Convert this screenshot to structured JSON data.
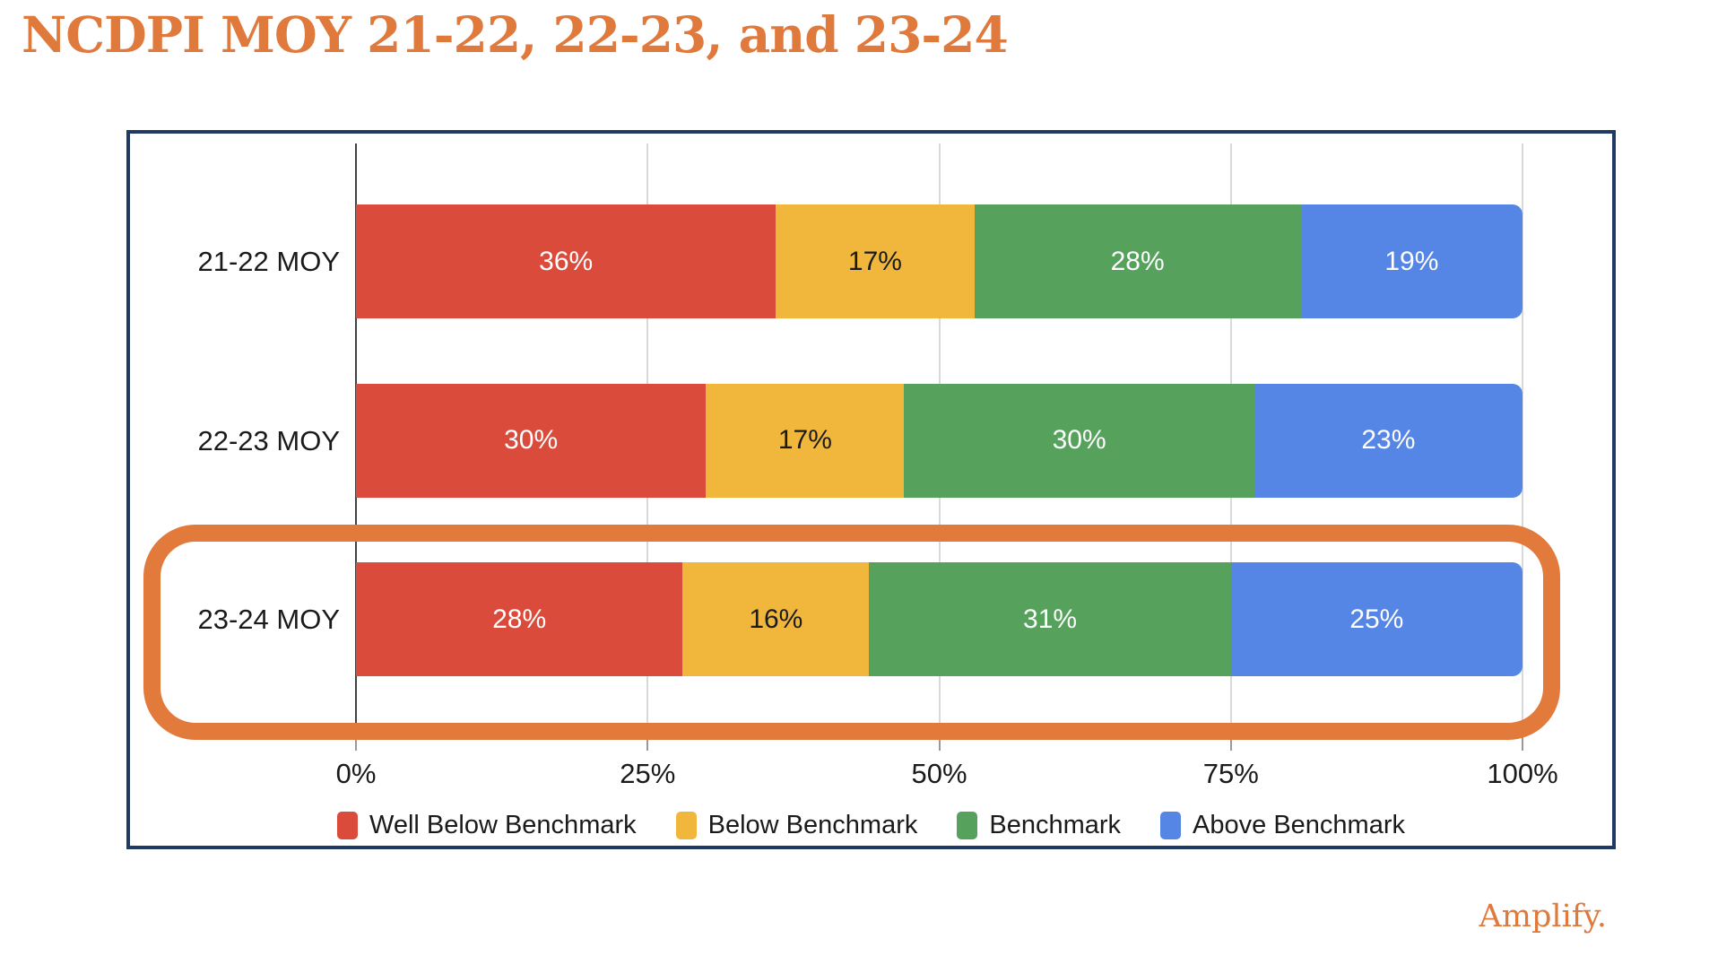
{
  "title": "NCDPI MOY 21-22, 22-23, and 23-24",
  "footer": {
    "logo_text": "Amplify."
  },
  "colors": {
    "title_orange": "#E0793C",
    "highlight_orange": "#E27A3B",
    "chart_border_navy": "#1F3A63",
    "gridline_gray": "#d9d9d9",
    "axis_line_dark": "#424242"
  },
  "chart_data": {
    "type": "bar",
    "stacked": true,
    "orientation": "horizontal",
    "title": "",
    "categories": [
      "21-22 MOY",
      "22-23 MOY",
      "23-24 MOY"
    ],
    "series": [
      {
        "name": "Well Below Benchmark",
        "color": "#DB4B3C",
        "label_color": "#FFFFFF",
        "values": [
          36,
          30,
          28
        ]
      },
      {
        "name": "Below Benchmark",
        "color": "#F0B73C",
        "label_color": "#1B1B1B",
        "values": [
          17,
          17,
          16
        ]
      },
      {
        "name": "Benchmark",
        "color": "#56A15C",
        "label_color": "#FFFFFF",
        "values": [
          28,
          30,
          31
        ]
      },
      {
        "name": "Above Benchmark",
        "color": "#5585E5",
        "label_color": "#FFFFFF",
        "values": [
          19,
          23,
          25
        ]
      }
    ],
    "value_suffix": "%",
    "x_ticks": [
      "0%",
      "25%",
      "50%",
      "75%",
      "100%"
    ],
    "xlim": [
      0,
      100
    ],
    "grid": true,
    "legend_position": "bottom",
    "highlighted_category": "23-24 MOY"
  }
}
